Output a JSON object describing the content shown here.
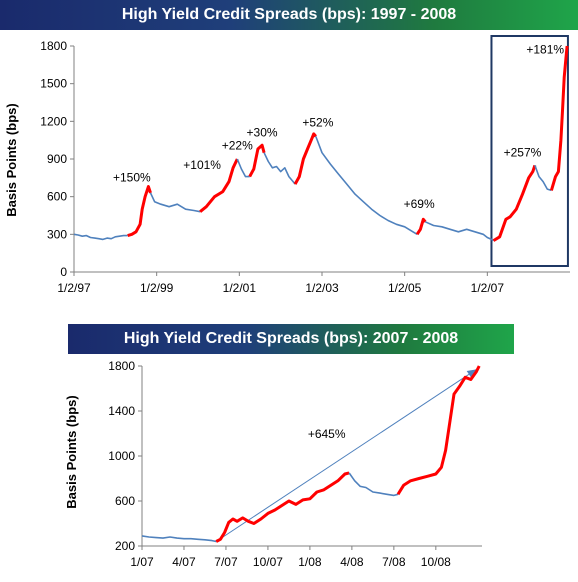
{
  "chart_data": [
    {
      "type": "line",
      "title": "High Yield Credit Spreads (bps): 1997 - 2008",
      "ylabel": "Basis Points (bps)",
      "xlabel": "",
      "ylim": [
        0,
        1800
      ],
      "yticks": [
        0,
        300,
        600,
        900,
        1200,
        1500,
        1800
      ],
      "xrange": [
        1997.0,
        2009.0
      ],
      "xticks": [
        {
          "x": 1997.0,
          "label": "1/2/97"
        },
        {
          "x": 1999.0,
          "label": "1/2/99"
        },
        {
          "x": 2001.0,
          "label": "1/2/01"
        },
        {
          "x": 2003.0,
          "label": "1/2/03"
        },
        {
          "x": 2005.0,
          "label": "1/2/05"
        },
        {
          "x": 2007.0,
          "label": "1/2/07"
        }
      ],
      "grid": false,
      "highlight_box": {
        "x_from": 2007.1,
        "x_to": 2008.95
      },
      "annotations": [
        {
          "text": "+150%",
          "x": 1998.4,
          "y": 720
        },
        {
          "text": "+101%",
          "x": 2000.1,
          "y": 820
        },
        {
          "text": "+22%",
          "x": 2000.95,
          "y": 975
        },
        {
          "text": "+30%",
          "x": 2001.55,
          "y": 1080
        },
        {
          "text": "+52%",
          "x": 2002.9,
          "y": 1160
        },
        {
          "text": "+69%",
          "x": 2005.35,
          "y": 510
        },
        {
          "text": "+257%",
          "x": 2007.85,
          "y": 920
        },
        {
          "text": "+181%",
          "x": 2008.4,
          "y": 1740
        }
      ],
      "series": [
        {
          "color": "#4f81bd",
          "values": [
            [
              1997.0,
              300
            ],
            [
              1997.1,
              295
            ],
            [
              1997.2,
              285
            ],
            [
              1997.3,
              290
            ],
            [
              1997.4,
              275
            ],
            [
              1997.5,
              270
            ],
            [
              1997.6,
              265
            ],
            [
              1997.7,
              260
            ],
            [
              1997.8,
              270
            ],
            [
              1997.9,
              265
            ],
            [
              1998.0,
              280
            ],
            [
              1998.1,
              285
            ],
            [
              1998.2,
              290
            ],
            [
              1998.3,
              290
            ]
          ]
        },
        {
          "color": "#ff0000",
          "values": [
            [
              1998.3,
              290
            ],
            [
              1998.4,
              300
            ],
            [
              1998.5,
              320
            ],
            [
              1998.6,
              380
            ],
            [
              1998.65,
              500
            ],
            [
              1998.72,
              600
            ],
            [
              1998.8,
              680
            ],
            [
              1998.85,
              630
            ]
          ]
        },
        {
          "color": "#4f81bd",
          "values": [
            [
              1998.85,
              630
            ],
            [
              1998.95,
              560
            ],
            [
              1999.1,
              540
            ],
            [
              1999.3,
              520
            ],
            [
              1999.5,
              540
            ],
            [
              1999.7,
              500
            ],
            [
              1999.9,
              490
            ],
            [
              2000.05,
              480
            ]
          ]
        },
        {
          "color": "#ff0000",
          "values": [
            [
              2000.05,
              480
            ],
            [
              2000.2,
              520
            ],
            [
              2000.4,
              600
            ],
            [
              2000.6,
              640
            ],
            [
              2000.75,
              720
            ],
            [
              2000.85,
              830
            ],
            [
              2000.95,
              900
            ]
          ]
        },
        {
          "color": "#4f81bd",
          "values": [
            [
              2000.95,
              900
            ],
            [
              2001.05,
              820
            ],
            [
              2001.15,
              760
            ],
            [
              2001.25,
              760
            ]
          ]
        },
        {
          "color": "#ff0000",
          "values": [
            [
              2001.25,
              760
            ],
            [
              2001.35,
              820
            ],
            [
              2001.45,
              980
            ],
            [
              2001.55,
              1010
            ],
            [
              2001.6,
              950
            ]
          ]
        },
        {
          "color": "#4f81bd",
          "values": [
            [
              2001.6,
              950
            ],
            [
              2001.7,
              880
            ],
            [
              2001.8,
              830
            ],
            [
              2001.9,
              840
            ],
            [
              2002.0,
              800
            ],
            [
              2002.1,
              830
            ],
            [
              2002.2,
              760
            ],
            [
              2002.3,
              720
            ],
            [
              2002.35,
              700
            ]
          ]
        },
        {
          "color": "#ff0000",
          "values": [
            [
              2002.35,
              700
            ],
            [
              2002.45,
              760
            ],
            [
              2002.55,
              900
            ],
            [
              2002.65,
              980
            ],
            [
              2002.75,
              1060
            ],
            [
              2002.8,
              1100
            ],
            [
              2002.85,
              1080
            ]
          ]
        },
        {
          "color": "#4f81bd",
          "values": [
            [
              2002.85,
              1080
            ],
            [
              2003.0,
              950
            ],
            [
              2003.2,
              860
            ],
            [
              2003.4,
              780
            ],
            [
              2003.6,
              700
            ],
            [
              2003.8,
              620
            ],
            [
              2004.0,
              560
            ],
            [
              2004.2,
              500
            ],
            [
              2004.4,
              450
            ],
            [
              2004.6,
              410
            ],
            [
              2004.8,
              380
            ],
            [
              2005.0,
              360
            ],
            [
              2005.2,
              320
            ],
            [
              2005.3,
              300
            ]
          ]
        },
        {
          "color": "#ff0000",
          "values": [
            [
              2005.3,
              300
            ],
            [
              2005.38,
              340
            ],
            [
              2005.45,
              420
            ],
            [
              2005.5,
              400
            ]
          ]
        },
        {
          "color": "#4f81bd",
          "values": [
            [
              2005.5,
              400
            ],
            [
              2005.7,
              370
            ],
            [
              2005.9,
              360
            ],
            [
              2006.1,
              340
            ],
            [
              2006.3,
              320
            ],
            [
              2006.5,
              340
            ],
            [
              2006.7,
              320
            ],
            [
              2006.9,
              300
            ],
            [
              2007.0,
              275
            ],
            [
              2007.1,
              260
            ],
            [
              2007.15,
              250
            ]
          ]
        },
        {
          "color": "#ff0000",
          "values": [
            [
              2007.15,
              250
            ],
            [
              2007.3,
              280
            ],
            [
              2007.45,
              420
            ],
            [
              2007.55,
              440
            ],
            [
              2007.7,
              500
            ],
            [
              2007.85,
              620
            ],
            [
              2008.0,
              750
            ],
            [
              2008.1,
              800
            ],
            [
              2008.15,
              850
            ]
          ]
        },
        {
          "color": "#4f81bd",
          "values": [
            [
              2008.15,
              850
            ],
            [
              2008.25,
              760
            ],
            [
              2008.35,
              720
            ],
            [
              2008.45,
              660
            ],
            [
              2008.55,
              650
            ]
          ]
        },
        {
          "color": "#ff0000",
          "values": [
            [
              2008.55,
              650
            ],
            [
              2008.65,
              760
            ],
            [
              2008.72,
              800
            ],
            [
              2008.78,
              1050
            ],
            [
              2008.82,
              1300
            ],
            [
              2008.86,
              1550
            ],
            [
              2008.9,
              1700
            ],
            [
              2008.93,
              1800
            ]
          ]
        }
      ]
    },
    {
      "type": "line",
      "title": "High Yield Credit Spreads (bps): 2007 - 2008",
      "ylabel": "Basis Points (bps)",
      "xlabel": "",
      "ylim": [
        200,
        1800
      ],
      "yticks": [
        200,
        600,
        1000,
        1400,
        1800
      ],
      "xrange": [
        0,
        24.3
      ],
      "xticks": [
        {
          "x": 0,
          "label": "1/07"
        },
        {
          "x": 3,
          "label": "4/07"
        },
        {
          "x": 6,
          "label": "7/07"
        },
        {
          "x": 9,
          "label": "10/07"
        },
        {
          "x": 12,
          "label": "1/08"
        },
        {
          "x": 15,
          "label": "4/08"
        },
        {
          "x": 18,
          "label": "7/08"
        },
        {
          "x": 21,
          "label": "10/08"
        }
      ],
      "grid": false,
      "trend_arrow": {
        "from": [
          5.3,
          240
        ],
        "to": [
          23.9,
          1770
        ]
      },
      "annotations": [
        {
          "text": "+645%",
          "x": 13.2,
          "y": 1160
        }
      ],
      "series": [
        {
          "color": "#4f81bd",
          "values": [
            [
              0,
              290
            ],
            [
              0.5,
              280
            ],
            [
              1,
              275
            ],
            [
              1.5,
              270
            ],
            [
              2,
              280
            ],
            [
              2.5,
              270
            ],
            [
              3,
              265
            ],
            [
              3.5,
              265
            ],
            [
              4,
              260
            ],
            [
              4.5,
              255
            ],
            [
              5,
              248
            ],
            [
              5.3,
              240
            ]
          ]
        },
        {
          "color": "#ff0000",
          "values": [
            [
              5.3,
              240
            ],
            [
              5.6,
              260
            ],
            [
              5.9,
              320
            ],
            [
              6.2,
              410
            ],
            [
              6.5,
              440
            ],
            [
              6.8,
              420
            ],
            [
              7.2,
              450
            ],
            [
              7.6,
              420
            ],
            [
              8,
              400
            ],
            [
              8.5,
              440
            ],
            [
              9,
              490
            ],
            [
              9.5,
              520
            ],
            [
              10,
              560
            ],
            [
              10.5,
              600
            ],
            [
              11,
              570
            ],
            [
              11.5,
              610
            ],
            [
              12,
              620
            ],
            [
              12.5,
              680
            ],
            [
              13,
              700
            ],
            [
              13.5,
              740
            ],
            [
              14,
              780
            ],
            [
              14.5,
              840
            ],
            [
              14.8,
              850
            ]
          ]
        },
        {
          "color": "#4f81bd",
          "values": [
            [
              14.8,
              850
            ],
            [
              15.2,
              780
            ],
            [
              15.6,
              730
            ],
            [
              16,
              720
            ],
            [
              16.5,
              680
            ],
            [
              17,
              670
            ],
            [
              17.5,
              660
            ],
            [
              18,
              650
            ],
            [
              18.3,
              660
            ]
          ]
        },
        {
          "color": "#ff0000",
          "values": [
            [
              18.3,
              660
            ],
            [
              18.7,
              740
            ],
            [
              19.2,
              780
            ],
            [
              19.8,
              800
            ],
            [
              20.4,
              820
            ],
            [
              21,
              840
            ],
            [
              21.4,
              900
            ],
            [
              21.7,
              1050
            ],
            [
              22,
              1300
            ],
            [
              22.3,
              1550
            ],
            [
              22.7,
              1620
            ],
            [
              23.1,
              1700
            ],
            [
              23.5,
              1680
            ],
            [
              23.9,
              1750
            ],
            [
              24.1,
              1800
            ]
          ]
        }
      ]
    }
  ]
}
